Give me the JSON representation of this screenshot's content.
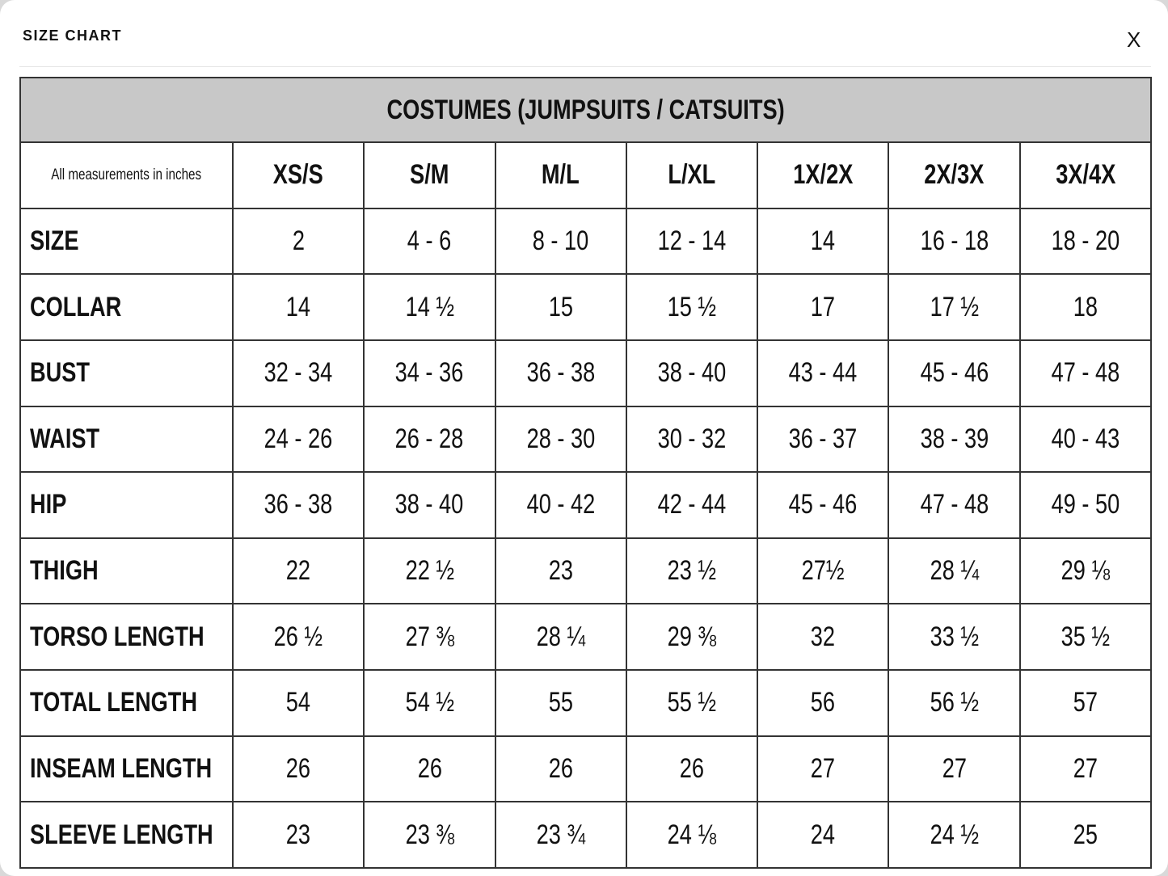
{
  "header": {
    "title": "SIZE CHART",
    "close": "X"
  },
  "table": {
    "title": "COSTUMES (JUMPSUITS / CATSUITS)",
    "columns": [
      "All measurements in inches",
      "XS/S",
      "S/M",
      "M/L",
      "L/XL",
      "1X/2X",
      "2X/3X",
      "3X/4X"
    ],
    "rows": [
      [
        "SIZE",
        "2",
        "4 - 6",
        "8 - 10",
        "12 - 14",
        "14",
        "16 - 18",
        "18 - 20"
      ],
      [
        "COLLAR",
        "14",
        "14 ½",
        "15",
        "15 ½",
        "17",
        "17 ½",
        "18"
      ],
      [
        "BUST",
        "32 - 34",
        "34 - 36",
        "36 - 38",
        "38 - 40",
        "43 - 44",
        "45 - 46",
        "47 - 48"
      ],
      [
        "WAIST",
        "24 - 26",
        "26 - 28",
        "28 - 30",
        "30 - 32",
        "36 - 37",
        "38 - 39",
        "40 - 43"
      ],
      [
        "HIP",
        "36 - 38",
        "38 - 40",
        "40 - 42",
        "42 - 44",
        "45 - 46",
        "47 - 48",
        "49 - 50"
      ],
      [
        "THIGH",
        "22",
        "22 ½",
        "23",
        "23 ½",
        "27½",
        "28 ¼",
        "29 ⅛"
      ],
      [
        "TORSO LENGTH",
        "26 ½",
        "27 ⅜",
        "28 ¼",
        "29 ⅜",
        "32",
        "33 ½",
        "35 ½"
      ],
      [
        "TOTAL LENGTH",
        "54",
        "54 ½",
        "55",
        "55 ½",
        "56",
        "56 ½",
        "57"
      ],
      [
        "INSEAM LENGTH",
        "26",
        "26",
        "26",
        "26",
        "27",
        "27",
        "27"
      ],
      [
        "SLEEVE LENGTH",
        "23",
        "23 ⅜",
        "23 ¾",
        "24 ⅛",
        "24",
        "24 ½",
        "25"
      ]
    ]
  }
}
